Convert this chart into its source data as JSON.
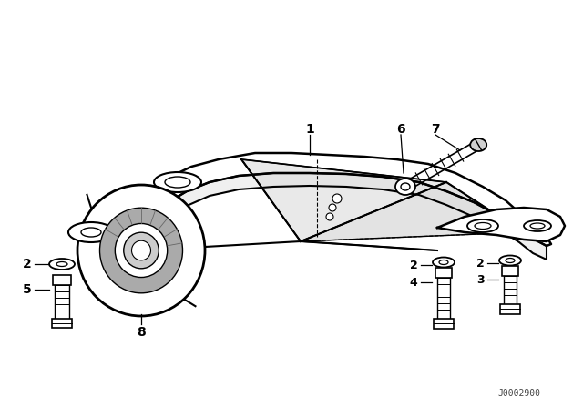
{
  "bg_color": "#ffffff",
  "line_color": "#000000",
  "label_color": "#000000",
  "fig_width": 6.4,
  "fig_height": 4.48,
  "dpi": 100,
  "watermark": "J0002900"
}
